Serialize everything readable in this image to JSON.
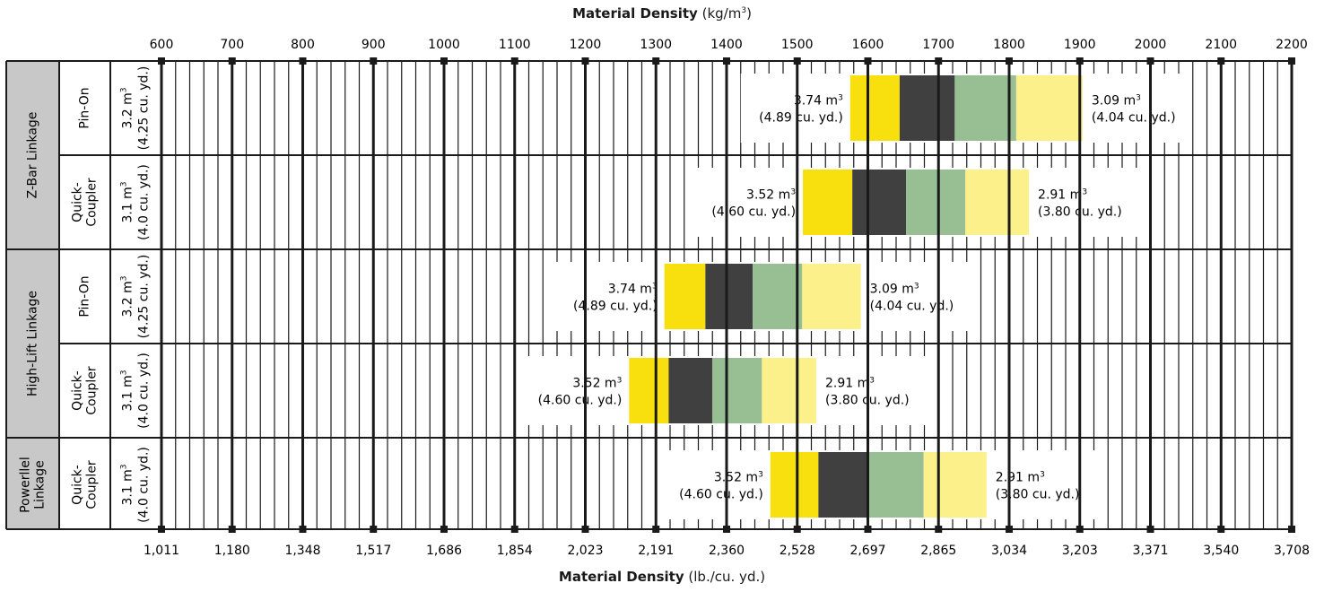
{
  "chart_data": {
    "type": "bar",
    "orientation": "horizontal-range",
    "top_axis": {
      "title_bold": "Material Density",
      "title_rest": " (kg/m",
      "title_sup": "3",
      "title_end": ")",
      "ticks": [
        600,
        700,
        800,
        900,
        1000,
        1100,
        1200,
        1300,
        1400,
        1500,
        1600,
        1700,
        1800,
        1900,
        2000,
        2100,
        2200
      ],
      "tick_labels": [
        "600",
        "700",
        "800",
        "900",
        "1000",
        "1100",
        "1200",
        "1300",
        "1400",
        "1500",
        "1600",
        "1700",
        "1800",
        "1900",
        "2000",
        "2100",
        "2200"
      ],
      "range": [
        600,
        2200
      ]
    },
    "bottom_axis": {
      "title_bold": "Material Density",
      "title_rest": " (lb./cu. yd.)",
      "tick_labels": [
        "1,011",
        "1,180",
        "1,348",
        "1,517",
        "1,686",
        "1,854",
        "2,023",
        "2,191",
        "2,360",
        "2,528",
        "2,697",
        "2,865",
        "3,034",
        "3,203",
        "3,371",
        "3,540",
        "3,708"
      ]
    },
    "groups": [
      {
        "label": "Z-Bar Linkage",
        "rows": [
          0,
          1
        ]
      },
      {
        "label": "High-Lift Linkage",
        "rows": [
          2,
          3
        ]
      },
      {
        "label": "Powerllel Linkage",
        "label_lines": [
          "Powerllel",
          "Linkage"
        ],
        "rows": [
          4
        ]
      }
    ],
    "rows": [
      {
        "coupling": [
          "Pin-On"
        ],
        "rated_line1": "3.2 m",
        "rated_line2": "(4.25 cu. yd.)",
        "segments": [
          1575,
          1645,
          1723,
          1810,
          1904
        ],
        "left_line1": "3.74 m",
        "left_line2": "(4.89 cu. yd.)",
        "right_line1": "3.09 m",
        "right_line2": "(4.04 cu. yd.)"
      },
      {
        "coupling": [
          "Quick-",
          "Coupler"
        ],
        "rated_line1": "3.1 m",
        "rated_line2": "(4.0 cu. yd.)",
        "segments": [
          1508,
          1578,
          1654,
          1738,
          1828
        ],
        "left_line1": "3.52 m",
        "left_line2": "(4.60 cu. yd.)",
        "right_line1": "2.91 m",
        "right_line2": "(3.80 cu. yd.)"
      },
      {
        "coupling": [
          "Pin-On"
        ],
        "rated_line1": "3.2 m",
        "rated_line2": "(4.25 cu. yd.)",
        "segments": [
          1312,
          1370,
          1437,
          1507,
          1590
        ],
        "left_line1": "3.74 m",
        "left_line2": "(4.89 cu. yd.)",
        "right_line1": "3.09 m",
        "right_line2": "(4.04 cu. yd.)"
      },
      {
        "coupling": [
          "Quick-",
          "Coupler"
        ],
        "rated_line1": "3.1 m",
        "rated_line2": "(4.0 cu. yd.)",
        "segments": [
          1262,
          1318,
          1380,
          1450,
          1527
        ],
        "left_line1": "3.52 m",
        "left_line2": "(4.60 cu. yd.)",
        "right_line1": "2.91 m",
        "right_line2": "(3.80 cu. yd.)"
      },
      {
        "coupling": [
          "Quick-",
          "Coupler"
        ],
        "rated_line1": "3.1 m",
        "rated_line2": "(4.0 cu. yd.)",
        "segments": [
          1462,
          1530,
          1601,
          1679,
          1768
        ],
        "left_line1": "3.52 m",
        "left_line2": "(4.60 cu. yd.)",
        "right_line1": "2.91 m",
        "right_line2": "(3.80 cu. yd.)"
      }
    ],
    "cubed_superscript": "3",
    "segment_colors": [
      "#f7e00e",
      "#404040",
      "#98bf94",
      "#fbf08a"
    ],
    "grid": true,
    "label_colors": {
      "group_cell": "#c8c8c8",
      "line": "#1a1a1a"
    }
  }
}
